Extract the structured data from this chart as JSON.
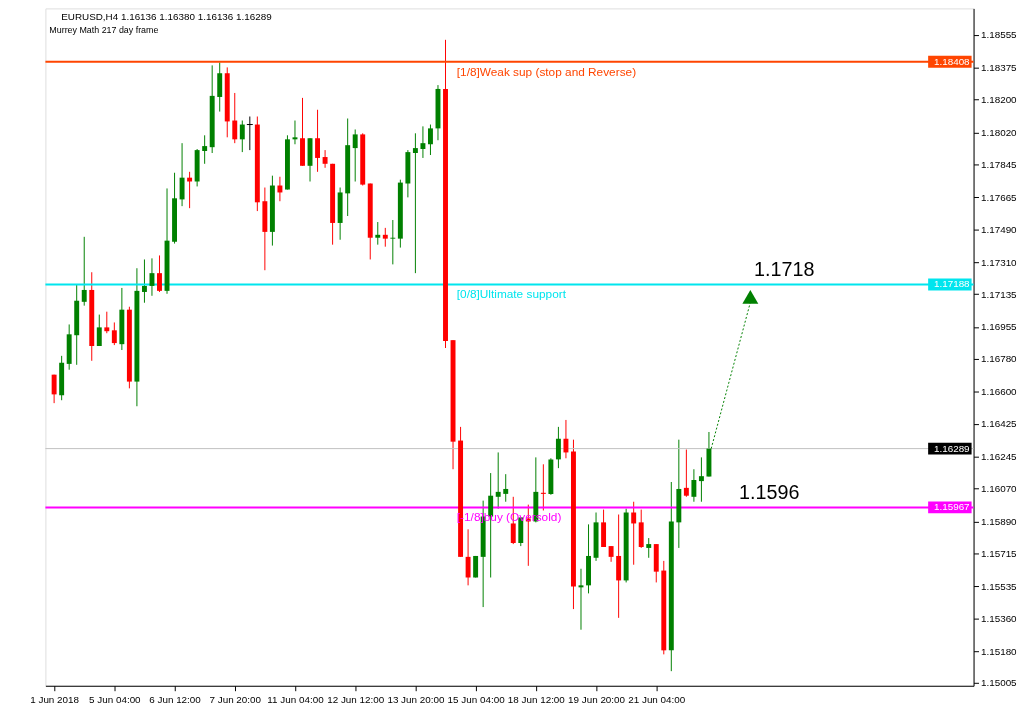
{
  "chart_data": {
    "type": "candlestick",
    "title": "EURUSD,H4  1.16136 1.16380 1.16136 1.16289",
    "subtitle": "Murrey Math 217 day frame",
    "categories": [
      "1 Jun 2018",
      null,
      null,
      null,
      null,
      null,
      null,
      null,
      "5 Jun 04:00",
      null,
      null,
      null,
      null,
      null,
      null,
      null,
      "6 Jun 12:00",
      null,
      null,
      null,
      null,
      null,
      null,
      null,
      "7 Jun 20:00",
      null,
      null,
      null,
      null,
      null,
      null,
      null,
      "11 Jun 04:00",
      null,
      null,
      null,
      null,
      null,
      null,
      null,
      "12 Jun 12:00",
      null,
      null,
      null,
      null,
      null,
      null,
      null,
      "13 Jun 20:00",
      null,
      null,
      null,
      null,
      null,
      null,
      null,
      "15 Jun 04:00",
      null,
      null,
      null,
      null,
      null,
      null,
      null,
      "18 Jun 12:00",
      null,
      null,
      null,
      null,
      null,
      null,
      null,
      "19 Jun 20:00",
      null,
      null,
      null,
      null,
      null,
      null,
      null,
      "21 Jun 04:00",
      null,
      null,
      null,
      null,
      null,
      null,
      null,
      null,
      null,
      null,
      null,
      null,
      null,
      null,
      null,
      null,
      null,
      null,
      null,
      null,
      null,
      null,
      null,
      null,
      null,
      null,
      null,
      null,
      null,
      null,
      null,
      null,
      null,
      null,
      null,
      null,
      null,
      null,
      null,
      null,
      null
    ],
    "ohlc": [
      [
        1.16694,
        1.16694,
        1.16538,
        1.16586
      ],
      [
        1.16581,
        1.16797,
        1.16554,
        1.16759
      ],
      [
        1.16753,
        1.16969,
        1.16721,
        1.16915
      ],
      [
        1.1691,
        1.17185,
        1.16748,
        1.17099
      ],
      [
        1.17093,
        1.17449,
        1.17072,
        1.17158
      ],
      [
        1.17158,
        1.17255,
        1.1677,
        1.16851
      ],
      [
        1.16851,
        1.17023,
        1.16851,
        1.16953
      ],
      [
        1.16953,
        1.17039,
        1.16921,
        1.16932
      ],
      [
        1.16937,
        1.1698,
        1.16856,
        1.16867
      ],
      [
        1.16861,
        1.17169,
        1.16829,
        1.1705
      ],
      [
        1.1705,
        1.17066,
        1.16619,
        1.16656
      ],
      [
        1.16656,
        1.17277,
        1.16521,
        1.17153
      ],
      [
        1.17147,
        1.17325,
        1.17088,
        1.1718
      ],
      [
        1.1718,
        1.17331,
        1.17126,
        1.1725
      ],
      [
        1.1725,
        1.17347,
        1.17147,
        1.17153
      ],
      [
        1.17153,
        1.17714,
        1.17137,
        1.17428
      ],
      [
        1.17422,
        1.178,
        1.17412,
        1.1766
      ],
      [
        1.17654,
        1.17962,
        1.17617,
        1.17773
      ],
      [
        1.17773,
        1.17805,
        1.17606,
        1.17752
      ],
      [
        1.17752,
        1.1793,
        1.17725,
        1.17924
      ],
      [
        1.17919,
        1.18005,
        1.17849,
        1.17946
      ],
      [
        1.1794,
        1.18388,
        1.17908,
        1.18221
      ],
      [
        1.18215,
        1.18404,
        1.18135,
        1.18345
      ],
      [
        1.18345,
        1.18377,
        1.17994,
        1.18081
      ],
      [
        1.18086,
        1.18237,
        1.17962,
        1.17983
      ],
      [
        1.17983,
        1.18086,
        1.17913,
        1.18064
      ],
      [
        1.18064,
        1.18108,
        1.17924,
        1.18064
      ],
      [
        1.18064,
        1.18108,
        1.1759,
        1.17638
      ],
      [
        1.17644,
        1.17719,
        1.17266,
        1.17476
      ],
      [
        1.17476,
        1.17784,
        1.17401,
        1.1773
      ],
      [
        1.1773,
        1.17778,
        1.17644,
        1.17692
      ],
      [
        1.17708,
        1.18005,
        1.17708,
        1.17983
      ],
      [
        1.17983,
        1.18086,
        1.17956,
        1.17994
      ],
      [
        1.17989,
        1.1821,
        1.17838,
        1.17838
      ],
      [
        1.17838,
        1.17989,
        1.17752,
        1.17989
      ],
      [
        1.17989,
        1.18145,
        1.17805,
        1.17881
      ],
      [
        1.17886,
        1.17924,
        1.17827,
        1.17849
      ],
      [
        1.17849,
        1.17849,
        1.17406,
        1.17525
      ],
      [
        1.17525,
        1.17719,
        1.17433,
        1.17692
      ],
      [
        1.17687,
        1.18097,
        1.17563,
        1.17951
      ],
      [
        1.17935,
        1.18037,
        1.17752,
        1.1801
      ],
      [
        1.1801,
        1.18016,
        1.1773,
        1.17735
      ],
      [
        1.17741,
        1.17741,
        1.17325,
        1.17444
      ],
      [
        1.17444,
        1.1753,
        1.17406,
        1.1746
      ],
      [
        1.1746,
        1.17498,
        1.17395,
        1.17439
      ],
      [
        1.17439,
        1.17541,
        1.17298,
        1.17444
      ],
      [
        1.17439,
        1.17762,
        1.1739,
        1.17746
      ],
      [
        1.17741,
        1.17924,
        1.17665,
        1.17913
      ],
      [
        1.17908,
        1.18016,
        1.1725,
        1.17935
      ],
      [
        1.1793,
        1.18054,
        1.17881,
        1.17962
      ],
      [
        1.17956,
        1.18064,
        1.17897,
        1.18043
      ],
      [
        1.18043,
        1.1828,
        1.17978,
        1.18259
      ],
      [
        1.18259,
        1.18528,
        1.1684,
        1.16878
      ],
      [
        1.16883,
        1.16883,
        1.16176,
        1.16327
      ],
      [
        1.16333,
        1.16408,
        1.15696,
        1.15696
      ],
      [
        1.15696,
        1.15847,
        1.1554,
        1.15583
      ],
      [
        1.15583,
        1.15701,
        1.15583,
        1.15701
      ],
      [
        1.15696,
        1.16004,
        1.15421,
        1.15917
      ],
      [
        1.15917,
        1.16155,
        1.15583,
        1.16031
      ],
      [
        1.16025,
        1.16268,
        1.1596,
        1.16052
      ],
      [
        1.16041,
        1.16149,
        1.15998,
        1.16068
      ],
      [
        1.15879,
        1.16025,
        1.15766,
        1.15772
      ],
      [
        1.15772,
        1.15912,
        1.15755,
        1.15912
      ],
      [
        1.15906,
        1.15982,
        1.15647,
        1.1589
      ],
      [
        1.1589,
        1.16241,
        1.15885,
        1.16052
      ],
      [
        1.16047,
        1.16203,
        1.1595,
        1.16041
      ],
      [
        1.16041,
        1.16236,
        1.16036,
        1.1623
      ],
      [
        1.1623,
        1.16408,
        1.16182,
        1.16343
      ],
      [
        1.16343,
        1.16446,
        1.16236,
        1.16268
      ],
      [
        1.16273,
        1.16338,
        1.1541,
        1.15534
      ],
      [
        1.15529,
        1.15631,
        1.15297,
        1.1554
      ],
      [
        1.1554,
        1.15874,
        1.15496,
        1.15701
      ],
      [
        1.15691,
        1.15939,
        1.15674,
        1.15885
      ],
      [
        1.15885,
        1.15955,
        1.1575,
        1.1575
      ],
      [
        1.15755,
        1.15755,
        1.15669,
        1.15696
      ],
      [
        1.15701,
        1.15928,
        1.15362,
        1.15567
      ],
      [
        1.15567,
        1.1596,
        1.15556,
        1.15939
      ],
      [
        1.15939,
        1.15998,
        1.15653,
        1.15879
      ],
      [
        1.15885,
        1.15955,
        1.15745,
        1.1575
      ],
      [
        1.15745,
        1.15799,
        1.15691,
        1.15766
      ],
      [
        1.15766,
        1.15766,
        1.15556,
        1.15615
      ],
      [
        1.15621,
        1.15674,
        1.15162,
        1.15184
      ],
      [
        1.15184,
        1.16106,
        1.1507,
        1.1589
      ],
      [
        1.15885,
        1.16338,
        1.15745,
        1.16068
      ],
      [
        1.16074,
        1.16284,
        1.16025,
        1.16031
      ],
      [
        1.16025,
        1.16176,
        1.15998,
        1.16117
      ],
      [
        1.16111,
        1.16241,
        1.15998,
        1.16138
      ],
      [
        1.16136,
        1.1638,
        1.16136,
        1.16289
      ],
      null,
      null,
      null,
      null,
      null,
      null,
      null,
      null,
      null,
      null,
      null,
      null,
      null,
      null,
      null,
      null,
      null,
      null,
      null,
      null,
      null,
      null,
      null,
      null,
      null,
      null,
      null,
      null,
      null,
      null,
      null,
      null,
      null,
      null
    ],
    "colors": [
      "#ff0000",
      "#008000",
      "#008000",
      "#008000",
      "#008000",
      "#ff0000",
      "#008000",
      "#ff0000",
      "#ff0000",
      "#008000",
      "#ff0000",
      "#008000",
      "#008000",
      "#008000",
      "#ff0000",
      "#008000",
      "#008000",
      "#008000",
      "#ff0000",
      "#008000",
      "#008000",
      "#008000",
      "#008000",
      "#ff0000",
      "#ff0000",
      "#008000",
      "#000000",
      "#ff0000",
      "#ff0000",
      "#008000",
      "#ff0000",
      "#008000",
      "#008000",
      "#ff0000",
      "#008000",
      "#ff0000",
      "#ff0000",
      "#ff0000",
      "#008000",
      "#008000",
      "#008000",
      "#ff0000",
      "#ff0000",
      "#008000",
      "#ff0000",
      "#008000",
      "#008000",
      "#008000",
      "#008000",
      "#008000",
      "#008000",
      "#008000",
      "#ff0000",
      "#ff0000",
      "#ff0000",
      "#ff0000",
      "#008000",
      "#008000",
      "#008000",
      "#008000",
      "#008000",
      "#ff0000",
      "#008000",
      "#ff0000",
      "#008000",
      "#ff0000",
      "#008000",
      "#008000",
      "#ff0000",
      "#ff0000",
      "#008000",
      "#008000",
      "#008000",
      "#ff0000",
      "#ff0000",
      "#ff0000",
      "#008000",
      "#ff0000",
      "#ff0000",
      "#008000",
      "#ff0000",
      "#ff0000",
      "#008000",
      "#008000",
      "#ff0000",
      "#008000",
      "#008000",
      "#008000",
      null,
      null,
      null,
      null,
      null,
      null,
      null,
      null,
      null,
      null,
      null,
      null,
      null,
      null,
      null,
      null,
      null,
      null,
      null,
      null,
      null,
      null,
      null,
      null,
      null,
      null,
      null,
      null,
      null,
      null,
      null,
      null,
      null,
      null
    ],
    "ylim": [
      1.1499,
      1.187
    ],
    "yticks": [
      1.18555,
      1.18375,
      {
        "value": 1.182,
        "label": "1.18200"
      },
      {
        "value": 1.1802,
        "label": "1.18020"
      },
      1.17845,
      1.17665,
      {
        "value": 1.1749,
        "label": "1.17490"
      },
      {
        "value": 1.1731,
        "label": "1.17310"
      },
      1.17135,
      1.16955,
      {
        "value": 1.1678,
        "label": "1.16780"
      },
      {
        "value": 1.166,
        "label": "1.16600"
      },
      1.16425,
      1.16245,
      {
        "value": 1.1607,
        "label": "1.16070"
      },
      {
        "value": 1.1589,
        "label": "1.15890"
      },
      1.15715,
      1.15535,
      {
        "value": 1.1536,
        "label": "1.15360"
      },
      {
        "value": 1.1518,
        "label": "1.15180"
      },
      1.15005
    ],
    "ref_lines": [
      {
        "axis": "y",
        "value": 1.18408,
        "label": "[1/8]Weak sup (stop and Reverse)",
        "color": "#ff4500"
      },
      {
        "axis": "y",
        "value": 1.17188,
        "label": "[0/8]Ultimate support",
        "color": "#00e5ee"
      },
      {
        "axis": "y",
        "value": 1.16289,
        "label": null,
        "color": "#c0c0c0"
      },
      {
        "axis": "y",
        "value": 1.15967,
        "label": "[-1/8]buy (Oversold)",
        "color": "#ff00ff"
      }
    ],
    "annotations": [
      {
        "text": "1.1718",
        "y": 1.1718
      },
      {
        "text": "1.1596",
        "y": 1.1596
      },
      {
        "text": "1.18408",
        "y": 1.18408
      },
      {
        "text": "1.17188",
        "y": 1.17188
      },
      {
        "text": "1.16289",
        "y": 1.16289
      },
      {
        "text": "1.15967",
        "y": 1.15967
      }
    ]
  }
}
